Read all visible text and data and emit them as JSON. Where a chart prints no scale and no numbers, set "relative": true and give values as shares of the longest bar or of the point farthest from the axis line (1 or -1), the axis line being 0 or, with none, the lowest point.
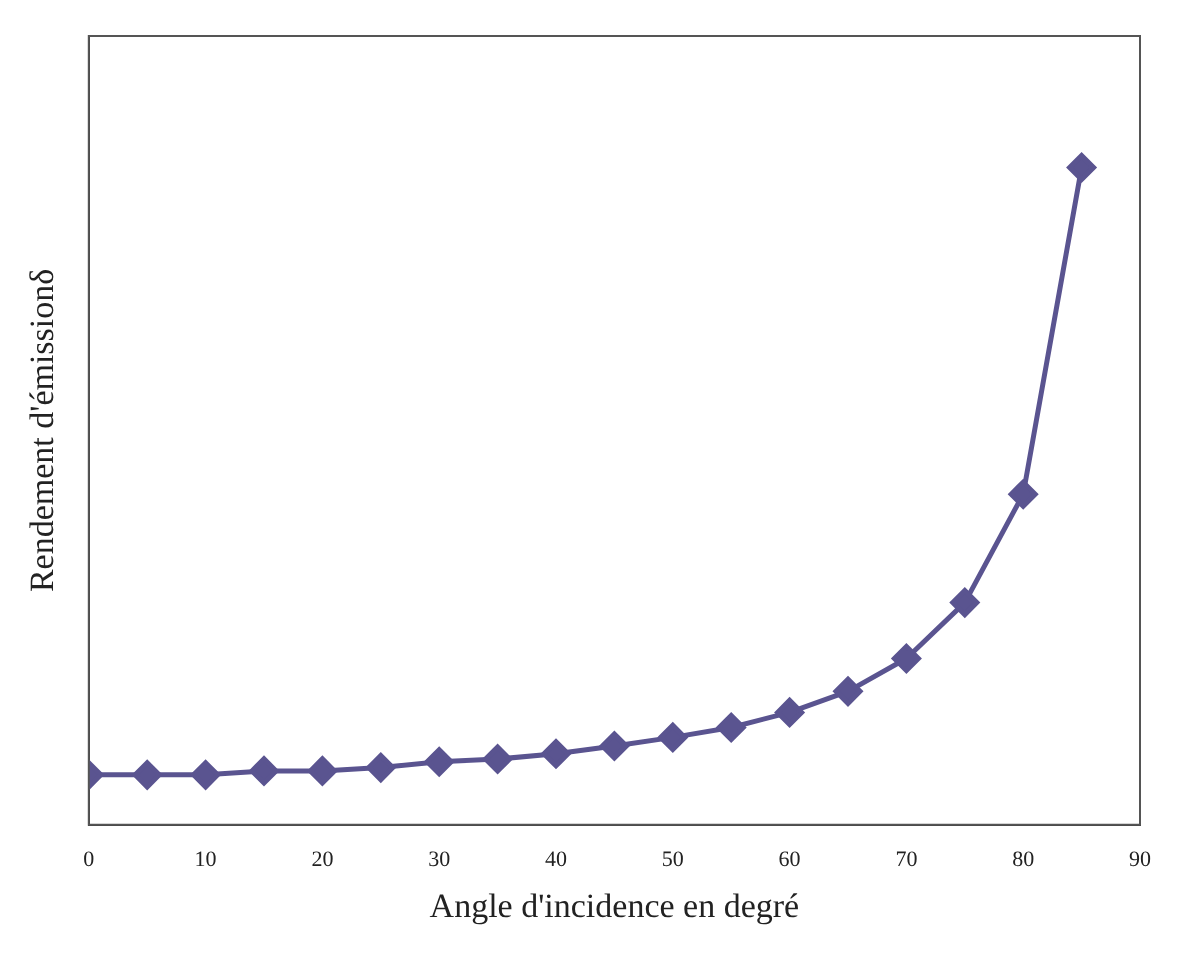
{
  "chart_data": {
    "type": "line",
    "xlabel": "Angle d'incidence en degré",
    "ylabel": "Rendement d'émissionδ",
    "relative": true,
    "x": [
      0,
      5,
      10,
      15,
      20,
      25,
      30,
      35,
      40,
      45,
      50,
      55,
      60,
      65,
      70,
      75,
      80,
      85
    ],
    "series": [
      {
        "color": "#5a5490",
        "values": [
          0.076,
          0.076,
          0.076,
          0.082,
          0.082,
          0.087,
          0.096,
          0.1,
          0.108,
          0.12,
          0.133,
          0.148,
          0.171,
          0.203,
          0.253,
          0.338,
          0.503,
          1
        ]
      }
    ],
    "xlim": [
      0,
      90
    ],
    "xticks": [
      0,
      10,
      20,
      30,
      40,
      50,
      60,
      70,
      80,
      90
    ],
    "grid": false,
    "legend": false,
    "marker": "diamond",
    "line_style": "solid"
  }
}
